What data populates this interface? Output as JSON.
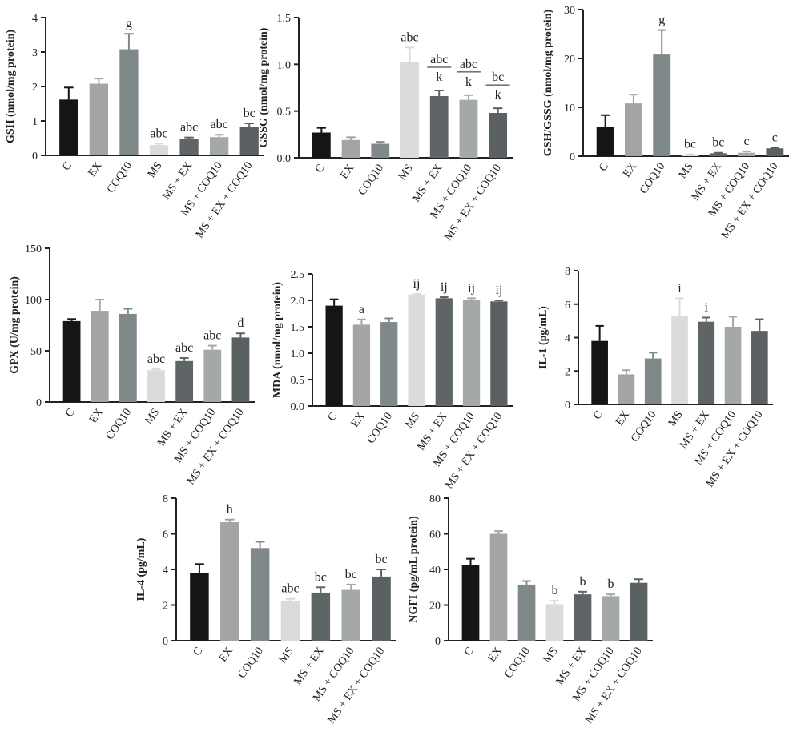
{
  "chart_data": [
    {
      "type": "bar",
      "ylabel": "GSH (nmol/mg protein)",
      "categories": [
        "C",
        "EX",
        "COQ10",
        "MS",
        "MS + EX",
        "MS + COQ10",
        "MS + EX + COQ10"
      ],
      "values": [
        1.62,
        2.08,
        3.08,
        0.3,
        0.47,
        0.53,
        0.83
      ],
      "errors": [
        0.35,
        0.15,
        0.45,
        0.04,
        0.05,
        0.07,
        0.1
      ],
      "colors": [
        "#151515",
        "#a3a5a5",
        "#80898a",
        "#d9dcda",
        "#5f6566",
        "#a4a8a8",
        "#5b6162"
      ],
      "annotations": [
        null,
        null,
        "g",
        "abc",
        "abc",
        "abc",
        "bc"
      ],
      "ylim": [
        0,
        4
      ],
      "yticks": [
        0,
        1,
        2,
        3,
        4
      ]
    },
    {
      "type": "bar",
      "ylabel": "GSSG (nmol/mg protein)",
      "categories": [
        "C",
        "EX",
        "COQ10",
        "MS",
        "MS + EX",
        "MS + COQ10",
        "MS + EX + COQ10"
      ],
      "values": [
        0.27,
        0.19,
        0.15,
        1.02,
        0.66,
        0.62,
        0.48
      ],
      "errors": [
        0.05,
        0.03,
        0.02,
        0.16,
        0.06,
        0.05,
        0.05
      ],
      "colors": [
        "#151515",
        "#a3a5a5",
        "#80898a",
        "#d9dcda",
        "#5f6566",
        "#a4a8a8",
        "#5b6162"
      ],
      "annotations": [
        null,
        null,
        null,
        "abc",
        [
          "abc",
          "k"
        ],
        [
          "abc",
          "k"
        ],
        [
          "bc",
          "k"
        ]
      ],
      "ylim": [
        0,
        1.5
      ],
      "yticks": [
        {
          "value": 0,
          "label": "0.0"
        },
        {
          "value": 0.5,
          "label": "0.5"
        },
        {
          "value": 1,
          "label": "1.0"
        },
        {
          "value": 1.5,
          "label": "1.5"
        }
      ]
    },
    {
      "type": "bar",
      "ylabel": "GSH/GSSG (nmol/mg protein)",
      "categories": [
        "C",
        "EX",
        "COQ10",
        "MS",
        "MS + EX",
        "MS + COQ10",
        "MS + EX + COQ10"
      ],
      "values": [
        6,
        10.8,
        20.8,
        0.3,
        0.6,
        0.7,
        1.6
      ],
      "errors": [
        2.4,
        1.8,
        5,
        0.1,
        0.1,
        0.3,
        0.1
      ],
      "colors": [
        "#151515",
        "#a3a5a5",
        "#80898a",
        "#d9dcda",
        "#5f6566",
        "#a4a8a8",
        "#5b6162"
      ],
      "annotations": [
        null,
        null,
        "g",
        "bc",
        "bc",
        "c",
        "c"
      ],
      "ylim": [
        0,
        30
      ],
      "yticks": [
        0,
        10,
        20,
        30
      ]
    },
    {
      "type": "bar",
      "ylabel": "GPX (U/mg protein)",
      "categories": [
        "C",
        "EX",
        "COQ10",
        "MS",
        "MS + EX",
        "MS + COQ10",
        "MS + EX + COQ10"
      ],
      "values": [
        79,
        89,
        86,
        31,
        40,
        51,
        63
      ],
      "errors": [
        2,
        11,
        5,
        1,
        3,
        4,
        4
      ],
      "colors": [
        "#151515",
        "#a3a5a5",
        "#80898a",
        "#d9dcda",
        "#5f6566",
        "#a4a8a8",
        "#5b6162"
      ],
      "annotations": [
        null,
        null,
        null,
        "abc",
        "abc",
        "abc",
        "d"
      ],
      "ylim": [
        0,
        150
      ],
      "yticks": [
        0,
        50,
        100,
        150
      ]
    },
    {
      "type": "bar",
      "ylabel": "MDA (nmol/mg protein)",
      "categories": [
        "C",
        "EX",
        "COQ10",
        "MS",
        "MS + EX",
        "MS + COQ10",
        "MS + EX + COQ10"
      ],
      "values": [
        1.9,
        1.54,
        1.59,
        2.11,
        2.04,
        2.01,
        1.98
      ],
      "errors": [
        0.12,
        0.1,
        0.07,
        0.01,
        0.02,
        0.03,
        0.02
      ],
      "colors": [
        "#151515",
        "#a3a5a5",
        "#80898a",
        "#d9dcda",
        "#5f6566",
        "#a4a8a8",
        "#5b6162"
      ],
      "annotations": [
        null,
        "a",
        null,
        "ij",
        "ij",
        "ij",
        "ij"
      ],
      "ylim": [
        0,
        2.5
      ],
      "yticks": [
        {
          "value": 0,
          "label": "0.0"
        },
        {
          "value": 0.5,
          "label": "0.5"
        },
        {
          "value": 1,
          "label": "1.0"
        },
        {
          "value": 1.5,
          "label": "1.5"
        },
        {
          "value": 2,
          "label": "2.0"
        },
        {
          "value": 2.5,
          "label": "2.5"
        }
      ]
    },
    {
      "type": "bar",
      "ylabel": "IL-1 (pg/mL)",
      "categories": [
        "C",
        "EX",
        "COQ10",
        "MS",
        "MS + EX",
        "MS + COQ10",
        "MS + EX + COQ10"
      ],
      "values": [
        3.8,
        1.8,
        2.75,
        5.3,
        4.95,
        4.65,
        4.4
      ],
      "errors": [
        0.9,
        0.25,
        0.35,
        1.05,
        0.25,
        0.6,
        0.7
      ],
      "colors": [
        "#151515",
        "#a3a5a5",
        "#80898a",
        "#d9dcda",
        "#5f6566",
        "#a4a8a8",
        "#5b6162"
      ],
      "annotations": [
        null,
        null,
        null,
        "i",
        "i",
        null,
        null
      ],
      "ylim": [
        0,
        8
      ],
      "yticks": [
        0,
        2,
        4,
        6,
        8
      ]
    },
    {
      "type": "bar",
      "ylabel": "IL-4 (pg/mL)",
      "categories": [
        "C",
        "EX",
        "COQ10",
        "MS",
        "MS + EX",
        "MS + COQ10",
        "MS + EX + COQ10"
      ],
      "values": [
        3.8,
        6.65,
        5.2,
        2.25,
        2.7,
        2.85,
        3.6
      ],
      "errors": [
        0.5,
        0.15,
        0.35,
        0.1,
        0.3,
        0.3,
        0.4
      ],
      "colors": [
        "#151515",
        "#a3a5a5",
        "#80898a",
        "#d9dcda",
        "#5f6566",
        "#a4a8a8",
        "#5b6162"
      ],
      "annotations": [
        null,
        "h",
        null,
        "abc",
        "bc",
        "bc",
        "bc"
      ],
      "ylim": [
        0,
        8
      ],
      "yticks": [
        0,
        2,
        4,
        6,
        8
      ]
    },
    {
      "type": "bar",
      "ylabel": "NGFI (pg/mL protein)",
      "categories": [
        "C",
        "EX",
        "COQ10",
        "MS",
        "MS + EX",
        "MS + COQ10",
        "MS + EX + COQ10"
      ],
      "values": [
        42.5,
        60,
        31.5,
        20.5,
        26,
        25,
        32.5
      ],
      "errors": [
        3.5,
        1.5,
        2,
        2,
        1.5,
        1,
        2
      ],
      "colors": [
        "#151515",
        "#a3a5a5",
        "#80898a",
        "#d9dcda",
        "#5f6566",
        "#a4a8a8",
        "#5b6162"
      ],
      "annotations": [
        null,
        null,
        null,
        "b",
        "b",
        "b",
        null
      ],
      "ylim": [
        0,
        80
      ],
      "yticks": [
        0,
        20,
        40,
        60,
        80
      ]
    }
  ]
}
